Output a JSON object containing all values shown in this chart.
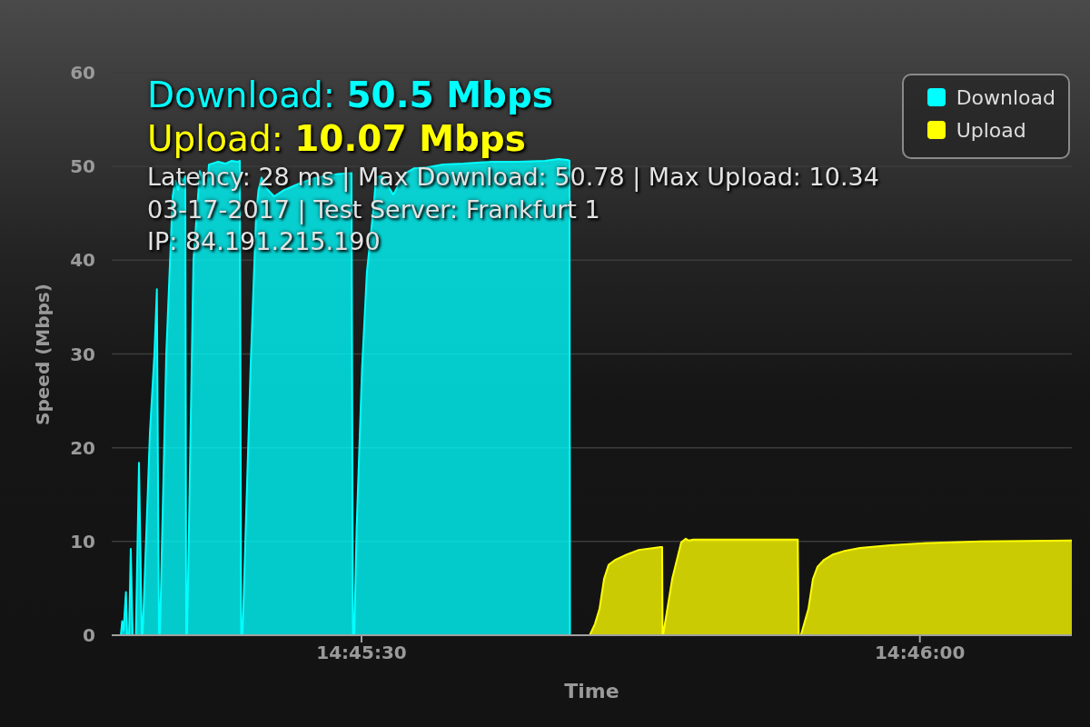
{
  "chart_data": {
    "type": "area",
    "xlabel": "Time",
    "ylabel": "Speed (Mbps)",
    "annotations": [
      "Download: 50.5 Mbps",
      "Upload: 10.07 Mbps",
      "Latency: 28 ms | Max Download: 50.78 | Max Upload: 10.34",
      "03-17-2017 | Test Server: Frankfurt 1",
      "IP: 84.191.215.190"
    ],
    "xlim": [
      14.754605,
      14.768935
    ],
    "xticks": [
      {
        "value": 14.758333,
        "label": "14:45:30"
      },
      {
        "value": 14.766667,
        "label": "14:46:00"
      }
    ],
    "ylim": [
      0,
      60
    ],
    "yticks": [
      0,
      10,
      20,
      30,
      40,
      50,
      60
    ],
    "grid": "y",
    "legend": "top right",
    "series": [
      {
        "name": "Download",
        "color": "#00ffff",
        "x": [
          14.754741,
          14.754761,
          14.754782,
          14.754817,
          14.754836,
          14.754863,
          14.754889,
          14.754917,
          14.754965,
          14.755012,
          14.755053,
          14.755066,
          14.755175,
          14.755242,
          14.755279,
          14.75531,
          14.755324,
          14.755419,
          14.755514,
          14.755554,
          14.755595,
          14.755636,
          14.755676,
          14.755703,
          14.755717,
          14.75573,
          14.755825,
          14.75592,
          14.755975,
          14.756029,
          14.756056,
          14.756191,
          14.7563,
          14.756395,
          14.75649,
          14.756517,
          14.756537,
          14.756557,
          14.756677,
          14.756761,
          14.756796,
          14.756842,
          14.756896,
          14.757032,
          14.757181,
          14.757412,
          14.757656,
          14.757981,
          14.758184,
          14.758205,
          14.758225,
          14.75826,
          14.758341,
          14.758413,
          14.75851,
          14.75855,
          14.758632,
          14.758808,
          14.758971,
          14.75912,
          14.759309,
          14.759549,
          14.759852,
          14.760258,
          14.760665,
          14.761072,
          14.761275,
          14.761405,
          14.761438,
          14.761445
        ],
        "values": [
          0,
          1.5,
          0.5,
          4.6,
          0,
          0,
          9.2,
          0,
          0,
          18.4,
          0,
          0,
          21.6,
          30,
          36.9,
          0,
          0,
          30,
          46.8,
          48.5,
          47.5,
          48.8,
          48.4,
          49,
          0,
          0,
          40,
          49.5,
          48.5,
          47.8,
          50.2,
          50.5,
          50.3,
          50.6,
          50.5,
          50.6,
          0,
          0,
          28.5,
          45,
          47.5,
          48.8,
          47.8,
          46.8,
          47.5,
          48.2,
          48.8,
          49.2,
          49.3,
          0,
          0,
          11.4,
          28.5,
          38.7,
          45.4,
          48.8,
          49,
          47,
          49.2,
          49.8,
          49.9,
          50.2,
          50.3,
          50.5,
          50.5,
          50.6,
          50.8,
          50.7,
          50.6,
          0
        ]
      },
      {
        "name": "Upload",
        "color": "#ffff00",
        "x": [
          14.76174,
          14.761817,
          14.761885,
          14.761953,
          14.762021,
          14.762112,
          14.762292,
          14.762472,
          14.762699,
          14.762798,
          14.762821,
          14.762827,
          14.762834,
          14.76297,
          14.763105,
          14.763173,
          14.763218,
          14.763286,
          14.763783,
          14.764325,
          14.764845,
          14.764858,
          14.764891,
          14.765003,
          14.765071,
          14.765139,
          14.76523,
          14.765365,
          14.765545,
          14.765772,
          14.766223,
          14.766671,
          14.767579,
          14.768935
        ],
        "values": [
          0,
          1.2,
          2.8,
          6.0,
          7.5,
          8.0,
          8.6,
          9.1,
          9.3,
          9.4,
          9.4,
          0,
          0,
          6.0,
          9.9,
          10.3,
          10.1,
          10.2,
          10.2,
          10.2,
          10.2,
          0,
          0,
          2.8,
          6.0,
          7.3,
          8.0,
          8.6,
          9.0,
          9.3,
          9.6,
          9.8,
          10.0,
          10.1
        ]
      }
    ]
  }
}
